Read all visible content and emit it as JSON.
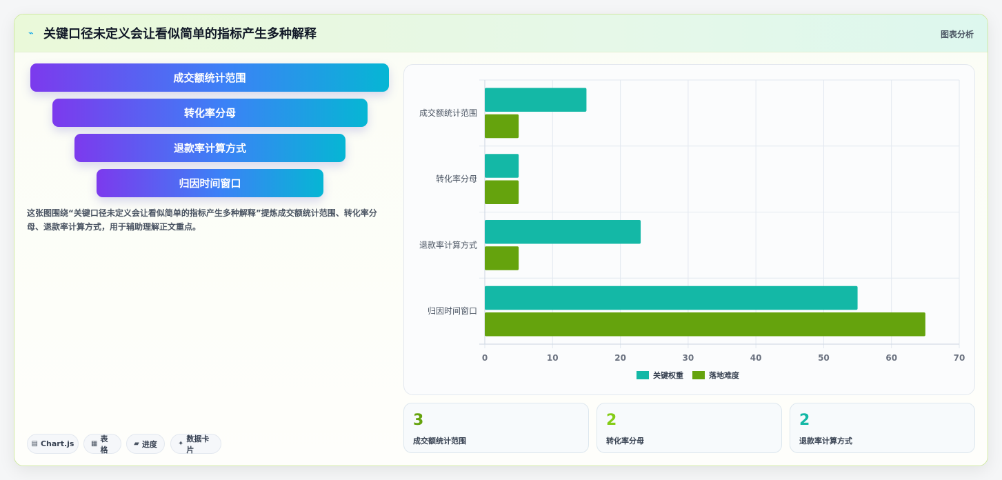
{
  "header": {
    "icon": "chart-icon",
    "title": "关键口径未定义会让看似简单的指标产生多种解释",
    "tag": "图表分析"
  },
  "funnel": {
    "items": [
      "成交额统计范围",
      "转化率分母",
      "退款率计算方式",
      "归因时间窗口"
    ],
    "colors": [
      "#7c3aed",
      "#3b82f6",
      "#06b6d4"
    ]
  },
  "description": "这张图围绕“关键口径未定义会让看似简单的指标产生多种解释”提炼成交额统计范围、转化率分母、退款率计算方式，用于辅助理解正文重点。",
  "chips": [
    {
      "icon": "bar-chart-icon",
      "label": "Chart.js"
    },
    {
      "icon": "table-icon",
      "label": "表格"
    },
    {
      "icon": "progress-icon",
      "label": "进度"
    },
    {
      "icon": "sparkle-icon",
      "label": "数据卡片"
    }
  ],
  "chart_data": {
    "type": "bar",
    "orientation": "horizontal",
    "categories": [
      "成交额统计范围",
      "转化率分母",
      "退款率计算方式",
      "归因时间窗口"
    ],
    "series": [
      {
        "name": "关键权重",
        "values": [
          15,
          5,
          23,
          55
        ],
        "color": "#14b8a6"
      },
      {
        "name": "落地难度",
        "values": [
          5,
          5,
          5,
          65
        ],
        "color": "#65a30d"
      }
    ],
    "xlim": [
      0,
      70
    ],
    "xticks": [
      0,
      10,
      20,
      30,
      40,
      50,
      60,
      70
    ],
    "grid": true,
    "legend": "bottom"
  },
  "stats": [
    {
      "value": "3",
      "label": "成交额统计范围",
      "color": "#65a30d"
    },
    {
      "value": "2",
      "label": "转化率分母",
      "color": "#84cc16"
    },
    {
      "value": "2",
      "label": "退款率计算方式",
      "color": "#14b8a6"
    }
  ]
}
